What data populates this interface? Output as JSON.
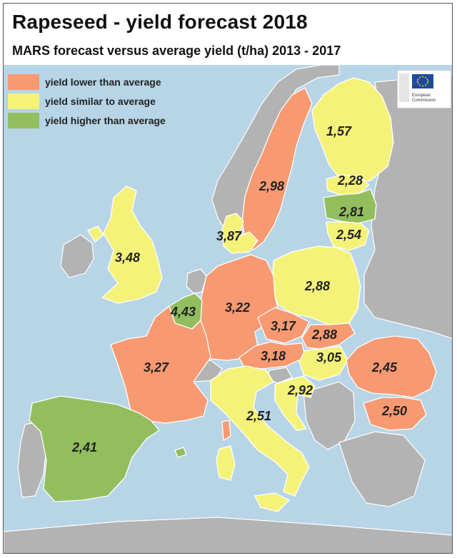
{
  "title": "Rapeseed - yield forecast 2018",
  "subtitle": "MARS forecast versus average yield (t/ha) 2013 - 2017",
  "colors": {
    "sea": "#b7d5e6",
    "nodata": "#b3b3b3",
    "lower": "#f79a72",
    "similar": "#f5f27a",
    "higher": "#93be5e",
    "border": "#ffffff"
  },
  "legend": [
    {
      "label": "yield lower than average",
      "color": "#f79a72"
    },
    {
      "label": "yield similar to average",
      "color": "#f5f27a"
    },
    {
      "label": "yield higher than average",
      "color": "#93be5e"
    }
  ],
  "logo": {
    "org_line1": "European",
    "org_line2": "Commission"
  },
  "regions": [
    {
      "id": "finland",
      "value": "1,57",
      "category": "similar"
    },
    {
      "id": "sweden",
      "value": "2,98",
      "category": "lower"
    },
    {
      "id": "estonia",
      "value": "2,28",
      "category": "similar"
    },
    {
      "id": "latvia",
      "value": "2,81",
      "category": "higher"
    },
    {
      "id": "lithuania",
      "value": "2,54",
      "category": "similar"
    },
    {
      "id": "denmark",
      "value": "3,87",
      "category": "similar"
    },
    {
      "id": "united-kingdom",
      "value": "3,48",
      "category": "similar"
    },
    {
      "id": "poland",
      "value": "2,88",
      "category": "similar"
    },
    {
      "id": "germany",
      "value": "3,22",
      "category": "lower"
    },
    {
      "id": "benelux",
      "value": "4,43",
      "category": "higher"
    },
    {
      "id": "czechia",
      "value": "3,17",
      "category": "lower"
    },
    {
      "id": "slovakia",
      "value": "2,88",
      "category": "lower"
    },
    {
      "id": "austria",
      "value": "3,18",
      "category": "lower"
    },
    {
      "id": "hungary",
      "value": "3,05",
      "category": "similar"
    },
    {
      "id": "france",
      "value": "3,27",
      "category": "lower"
    },
    {
      "id": "romania",
      "value": "2,45",
      "category": "lower"
    },
    {
      "id": "bulgaria",
      "value": "2,50",
      "category": "lower"
    },
    {
      "id": "croatia",
      "value": "2,92",
      "category": "similar"
    },
    {
      "id": "italy",
      "value": "2,51",
      "category": "similar"
    },
    {
      "id": "spain",
      "value": "2,41",
      "category": "higher"
    }
  ]
}
